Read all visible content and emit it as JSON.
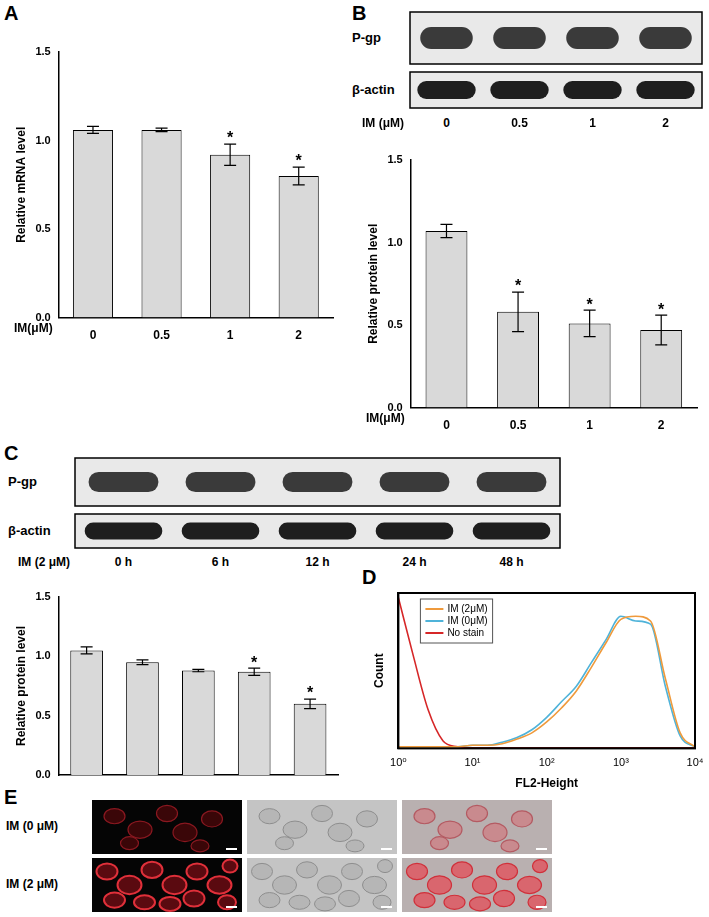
{
  "panel_labels": [
    "A",
    "B",
    "C",
    "D",
    "E"
  ],
  "chart_data": [
    {
      "panel": "A",
      "type": "bar",
      "categories": [
        "0",
        "0.5",
        "1",
        "2"
      ],
      "values": [
        1.06,
        1.06,
        0.92,
        0.8
      ],
      "errors": [
        0.02,
        0.01,
        0.06,
        0.05
      ],
      "significance": [
        null,
        null,
        "*",
        "*"
      ],
      "y_label": "Relative mRNA level",
      "x_label": "IM(μM)",
      "ylim": [
        0,
        1.5
      ],
      "yticks": [
        {
          "value": 0,
          "label": "0.0"
        },
        0.5,
        {
          "value": 1,
          "label": "1.0"
        },
        1.5
      ],
      "color": "#d9d9d9",
      "grid": false
    },
    {
      "panel": "B",
      "type": "bar",
      "categories": [
        "0",
        "0.5",
        "1",
        "2"
      ],
      "values": [
        1.07,
        0.58,
        0.51,
        0.47
      ],
      "errors": [
        0.04,
        0.12,
        0.08,
        0.09
      ],
      "significance": [
        null,
        "*",
        "*",
        "*"
      ],
      "y_label": "Relative protein level",
      "x_label": "IM(μM)",
      "ylim": [
        0,
        1.5
      ],
      "yticks": [
        {
          "value": 0,
          "label": "0.0"
        },
        0.5,
        {
          "value": 1,
          "label": "1.0"
        },
        1.5
      ],
      "color": "#d9d9d9",
      "grid": false
    },
    {
      "panel": "C",
      "type": "bar",
      "categories": [
        null,
        null,
        null,
        null,
        null
      ],
      "values": [
        1.05,
        0.95,
        0.88,
        0.87,
        0.6
      ],
      "errors": [
        0.03,
        0.02,
        0.01,
        0.03,
        0.04
      ],
      "significance": [
        null,
        null,
        null,
        "*",
        "*"
      ],
      "y_label": "Relative protein level",
      "ylim": [
        0,
        1.5
      ],
      "yticks": [
        {
          "value": 0,
          "label": "0.0"
        },
        0.5,
        {
          "value": 1,
          "label": "1.0"
        },
        1.5
      ],
      "color": "#d9d9d9",
      "grid": false,
      "tick_labels": "y"
    },
    {
      "panel": "D",
      "type": "line",
      "log": "x",
      "x": [
        1,
        1.58,
        2.51,
        3.98,
        6.31,
        10,
        15.8,
        25.1,
        39.8,
        63.1,
        100,
        158,
        251,
        398,
        631,
        1000,
        1585,
        2512,
        3981,
        6310,
        10000
      ],
      "series": [
        {
          "name": "IM (2μM)",
          "color": "#ef9a3c",
          "values": [
            1,
            1,
            1,
            1,
            1,
            2,
            2,
            3,
            6,
            10,
            17,
            26,
            37,
            52,
            68,
            83,
            85,
            82,
            45,
            10,
            1
          ]
        },
        {
          "name": "IM (0μM)",
          "color": "#4fb3d9",
          "values": [
            1,
            1,
            1,
            1,
            1,
            2,
            2,
            4,
            7,
            12,
            20,
            30,
            40,
            55,
            70,
            85,
            82,
            80,
            40,
            8,
            1
          ]
        },
        {
          "name": "No stain",
          "color": "#d62728",
          "values": [
            97,
            60,
            25,
            5,
            1,
            0,
            0,
            0,
            0,
            0,
            0,
            0,
            0,
            0,
            0,
            0,
            0,
            0,
            0,
            0,
            0
          ]
        }
      ],
      "x_label": "FL2-Height",
      "y_label": "Count",
      "xlim": [
        1,
        10000
      ],
      "xticks": [
        {
          "value": 1,
          "label": "10⁰"
        },
        {
          "value": 10,
          "label": "10¹"
        },
        {
          "value": 100,
          "label": "10²"
        },
        {
          "value": 1000,
          "label": "10³"
        },
        {
          "value": 10000,
          "label": "10⁴"
        }
      ],
      "ylim": [
        0,
        100
      ],
      "tick_labels": "x",
      "legend": "upper left",
      "grid": false
    }
  ],
  "blots": [
    {
      "panel": "B",
      "rows": [
        "P-gp",
        "β-actin"
      ],
      "lane_title": "IM (μM)",
      "lanes": [
        "0",
        "0.5",
        "1",
        "2"
      ]
    },
    {
      "panel": "C",
      "rows": [
        "P-gp",
        "β-actin"
      ],
      "lane_title": "IM (2 μM)",
      "lanes": [
        "0 h",
        "6 h",
        "12 h",
        "24 h",
        "48 h"
      ]
    }
  ],
  "micrographs": {
    "panel": "E",
    "rows": [
      "IM (0 μM)",
      "IM (2 μM)"
    ]
  }
}
